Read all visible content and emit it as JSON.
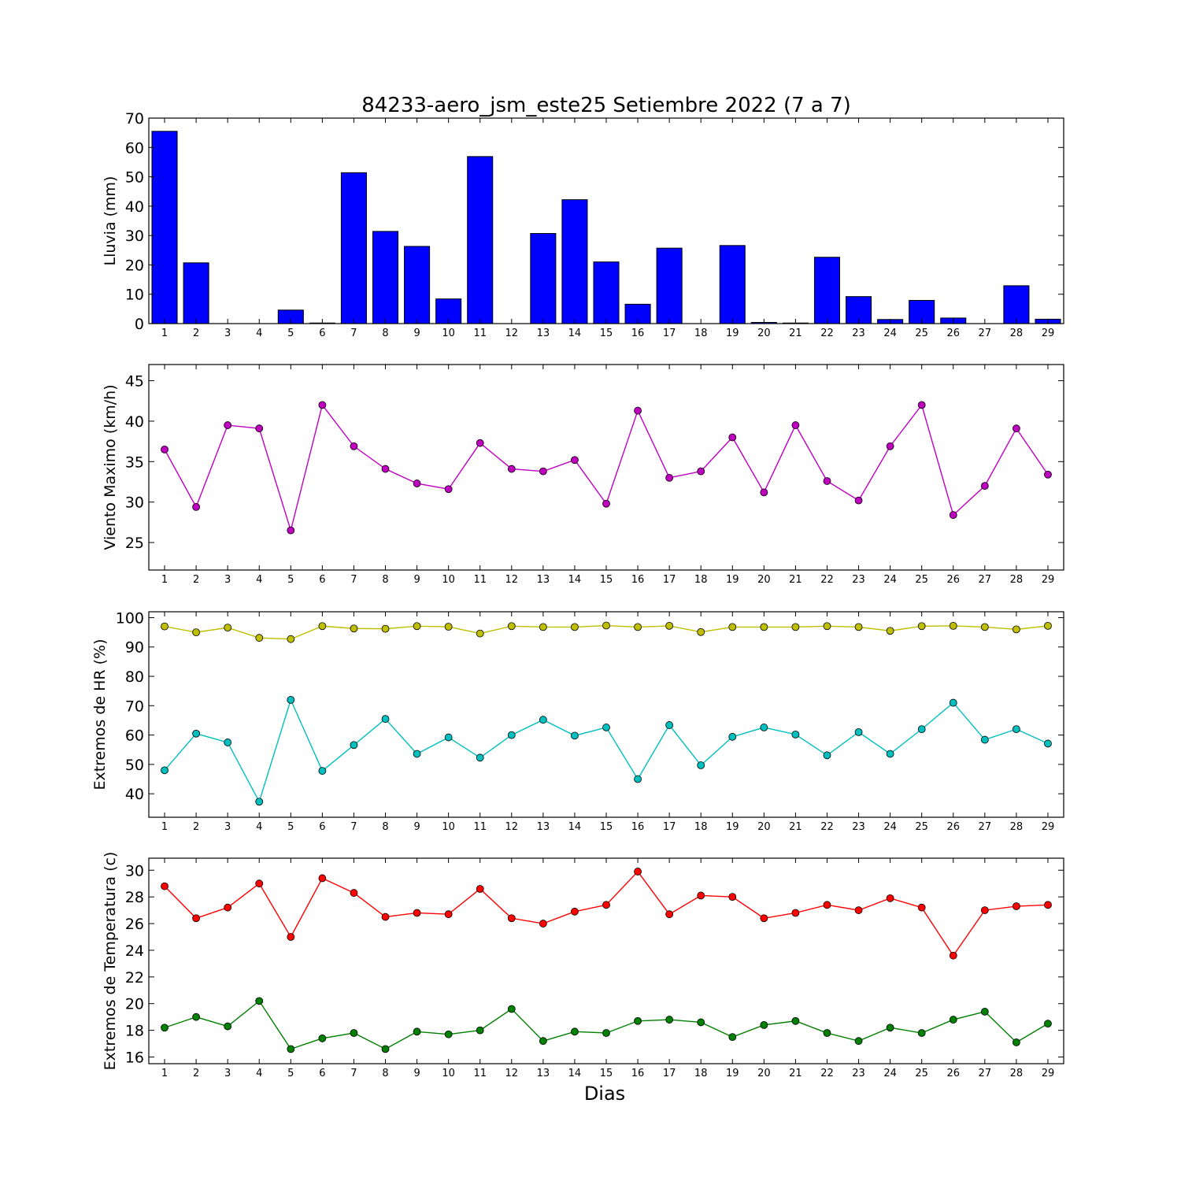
{
  "chart_data": {
    "title": "84233-aero_jsm_este25 Setiembre 2022  (7 a 7)",
    "xlabel": "Dias",
    "days": [
      1,
      2,
      3,
      4,
      5,
      6,
      7,
      8,
      9,
      10,
      11,
      12,
      13,
      14,
      15,
      16,
      17,
      18,
      19,
      20,
      21,
      22,
      23,
      24,
      25,
      26,
      27,
      28,
      29
    ],
    "panels": [
      {
        "type": "bar",
        "ylabel": "Lluvia (mm)",
        "ylim": [
          0,
          70
        ],
        "yticks": [
          0,
          10,
          20,
          30,
          40,
          50,
          60,
          70
        ],
        "series": [
          {
            "color": "#0000ff",
            "values": [
              65.5,
              20.7,
              0,
              0,
              4.6,
              0.2,
              51.4,
              31.4,
              26.3,
              8.4,
              56.9,
              0,
              30.7,
              42.2,
              21.0,
              6.6,
              25.7,
              0,
              26.6,
              0.4,
              0.2,
              22.6,
              9.2,
              1.4,
              7.9,
              1.9,
              0,
              12.9,
              1.5
            ]
          }
        ]
      },
      {
        "type": "line",
        "ylabel": "Viento Maximo (km/h)",
        "ylim": [
          21.6,
          47
        ],
        "yticks": [
          25,
          30,
          35,
          40,
          45
        ],
        "series": [
          {
            "color": "#bf00bf",
            "values": [
              36.5,
              29.4,
              39.5,
              39.1,
              26.5,
              42.0,
              36.9,
              34.1,
              32.3,
              31.6,
              37.3,
              34.1,
              33.8,
              35.2,
              29.8,
              41.3,
              33.0,
              33.8,
              38.0,
              31.2,
              39.5,
              32.6,
              30.2,
              36.9,
              42.0,
              28.4,
              32.0,
              39.1,
              33.4
            ]
          }
        ]
      },
      {
        "type": "line",
        "ylabel": "Extremos de HR (%)",
        "ylim": [
          32,
          102
        ],
        "yticks": [
          40,
          50,
          60,
          70,
          80,
          90,
          100
        ],
        "series": [
          {
            "color": "#bfbf00",
            "values": [
              97,
              95,
              96.6,
              93.1,
              92.7,
              97.1,
              96.3,
              96.2,
              97.1,
              96.9,
              94.6,
              97.1,
              96.8,
              96.8,
              97.3,
              96.8,
              97.2,
              95.1,
              96.8,
              96.8,
              96.8,
              97.1,
              96.8,
              95.5,
              97.1,
              97.2,
              96.8,
              96,
              97.2
            ]
          },
          {
            "color": "#00bfbf",
            "values": [
              48,
              60.5,
              57.5,
              37.3,
              72,
              47.8,
              56.6,
              65.5,
              53.6,
              59.2,
              52.3,
              60,
              65.2,
              59.8,
              62.6,
              45,
              63.4,
              49.7,
              59.4,
              62.6,
              60.2,
              53.1,
              61,
              53.6,
              62,
              71,
              58.4,
              62,
              57.1
            ]
          }
        ]
      },
      {
        "type": "line",
        "ylabel": "Extremos de Temperatura (c)",
        "ylim": [
          15.5,
          30.9
        ],
        "yticks": [
          16,
          18,
          20,
          22,
          24,
          26,
          28,
          30
        ],
        "series": [
          {
            "color": "#ff0000",
            "values": [
              28.8,
              26.4,
              27.2,
              29.0,
              25.0,
              29.4,
              28.3,
              26.5,
              26.8,
              26.7,
              28.6,
              26.4,
              26.0,
              26.9,
              27.4,
              29.9,
              26.7,
              28.1,
              28.0,
              26.4,
              26.8,
              27.4,
              27.0,
              27.9,
              27.2,
              23.6,
              27.0,
              27.3,
              27.4
            ]
          },
          {
            "color": "#008000",
            "values": [
              18.2,
              19.0,
              18.3,
              20.2,
              16.6,
              17.4,
              17.8,
              16.6,
              17.9,
              17.7,
              18.0,
              19.6,
              17.2,
              17.9,
              17.8,
              18.7,
              18.8,
              18.6,
              17.5,
              18.4,
              18.7,
              17.8,
              17.2,
              18.2,
              17.8,
              18.8,
              19.4,
              17.1,
              18.5
            ]
          }
        ]
      }
    ]
  }
}
